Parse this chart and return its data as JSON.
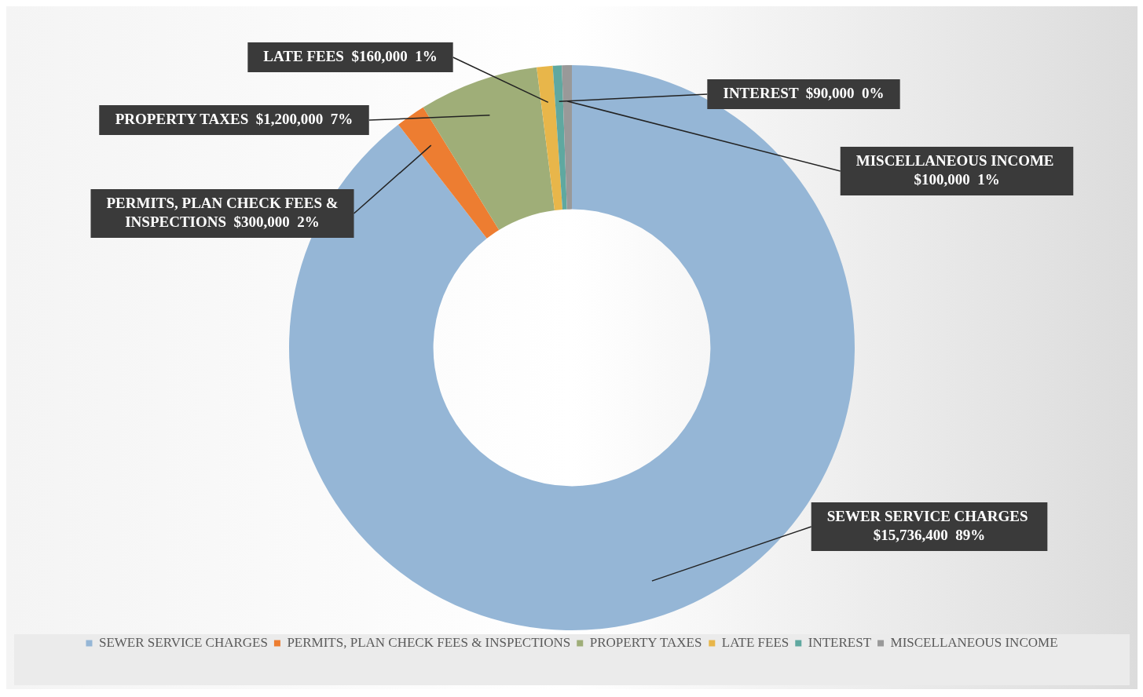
{
  "chart_data": {
    "type": "donut",
    "categories": [
      "SEWER SERVICE CHARGES",
      "PERMITS, PLAN CHECK FEES & INSPECTIONS",
      "PROPERTY TAXES",
      "LATE FEES",
      "INTEREST",
      "MISCELLANEOUS INCOME"
    ],
    "values": [
      15736400,
      300000,
      1200000,
      160000,
      90000,
      100000
    ],
    "colors": [
      "#95b6d6",
      "#ed7d31",
      "#9fae78",
      "#e8b64a",
      "#5fa8a0",
      "#999999"
    ],
    "value_labels": [
      "$15,736,400  89%",
      "$300,000  2%",
      "$1,200,000  7%",
      "$160,000  1%",
      "$90,000  0%",
      "$100,000  1%"
    ],
    "legend": "bottom"
  }
}
